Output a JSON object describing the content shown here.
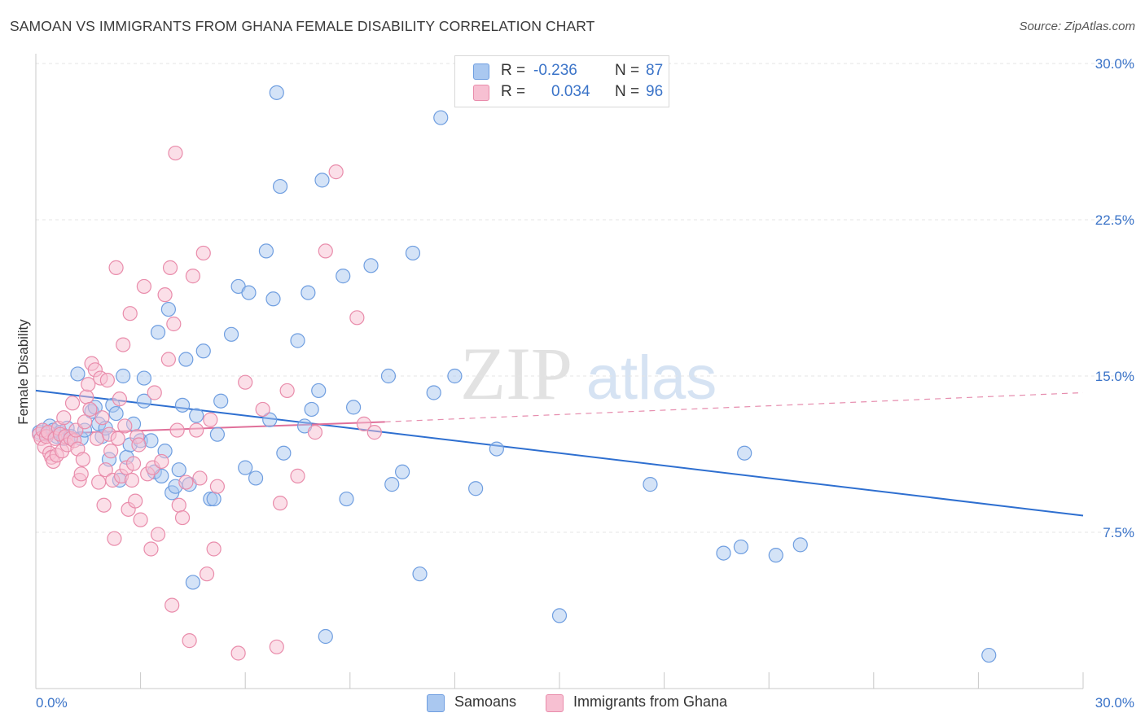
{
  "title": "SAMOAN VS IMMIGRANTS FROM GHANA FEMALE DISABILITY CORRELATION CHART",
  "source": "Source: ZipAtlas.com",
  "watermark": {
    "zip": "ZIP",
    "atlas": "atlas"
  },
  "legend": {
    "rows": [
      {
        "r_label": "R =",
        "r_value": "-0.236",
        "n_label": "N =",
        "n_value": "87",
        "color": "#aac8f0",
        "border": "#6f9ee0"
      },
      {
        "r_label": "R =",
        "r_value": "0.034",
        "n_label": "N =",
        "n_value": "96",
        "color": "#f7c0d2",
        "border": "#e98cab"
      }
    ]
  },
  "bottom_legend": [
    {
      "label": "Samoans",
      "color": "#aac8f0",
      "border": "#6f9ee0"
    },
    {
      "label": "Immigrants from Ghana",
      "color": "#f7c0d2",
      "border": "#e98cab"
    }
  ],
  "chart_data": {
    "type": "scatter",
    "ylabel": "Female Disability",
    "xlim": [
      0,
      30
    ],
    "ylim": [
      0,
      30.0
    ],
    "x_tick_labels": [
      {
        "value": 0,
        "label": "0.0%"
      },
      {
        "value": 30,
        "label": "30.0%"
      }
    ],
    "y_tick_labels": [
      {
        "value": 7.5,
        "label": "7.5%"
      },
      {
        "value": 15.0,
        "label": "15.0%"
      },
      {
        "value": 22.5,
        "label": "22.5%"
      },
      {
        "value": 30.0,
        "label": "30.0%"
      }
    ],
    "x_minor_ticks": [
      3,
      6,
      9,
      12,
      15,
      18,
      21,
      24,
      27,
      30
    ],
    "grid": true,
    "colors": {
      "samoans_line": "#2e6fd0",
      "ghana_line": "#e0709a",
      "y_tick_text": "#3a73c8",
      "x_tick_text": "#3a73c8"
    },
    "series": [
      {
        "name": "Samoans",
        "fill": "#aac8f0",
        "stroke": "#6f9ee0",
        "trend": {
          "x": [
            0,
            30
          ],
          "y": [
            14.3,
            8.3
          ],
          "style": "solid"
        },
        "points": [
          [
            0.1,
            12.3
          ],
          [
            0.2,
            12.4
          ],
          [
            0.3,
            12.2
          ],
          [
            0.4,
            12.6
          ],
          [
            0.5,
            12.4
          ],
          [
            0.6,
            12.1
          ],
          [
            0.7,
            12.3
          ],
          [
            0.8,
            12.0
          ],
          [
            0.9,
            12.5
          ],
          [
            1.0,
            12.1
          ],
          [
            1.2,
            15.1
          ],
          [
            1.3,
            12.0
          ],
          [
            1.4,
            12.4
          ],
          [
            1.6,
            13.3
          ],
          [
            1.7,
            13.5
          ],
          [
            1.8,
            12.7
          ],
          [
            1.9,
            12.1
          ],
          [
            2.0,
            12.5
          ],
          [
            2.1,
            11.0
          ],
          [
            2.2,
            13.6
          ],
          [
            2.3,
            13.2
          ],
          [
            2.4,
            10.0
          ],
          [
            2.5,
            15.0
          ],
          [
            2.6,
            11.1
          ],
          [
            2.7,
            11.7
          ],
          [
            2.8,
            12.7
          ],
          [
            3.0,
            11.9
          ],
          [
            3.1,
            13.8
          ],
          [
            3.1,
            14.9
          ],
          [
            3.3,
            11.9
          ],
          [
            3.4,
            10.4
          ],
          [
            3.5,
            17.1
          ],
          [
            3.6,
            10.2
          ],
          [
            3.7,
            11.4
          ],
          [
            3.8,
            18.2
          ],
          [
            3.9,
            9.4
          ],
          [
            4.0,
            9.7
          ],
          [
            4.1,
            10.5
          ],
          [
            4.2,
            13.6
          ],
          [
            4.3,
            15.8
          ],
          [
            4.4,
            9.8
          ],
          [
            4.5,
            5.1
          ],
          [
            4.6,
            13.1
          ],
          [
            4.8,
            16.2
          ],
          [
            5.0,
            9.1
          ],
          [
            5.1,
            9.1
          ],
          [
            5.2,
            12.2
          ],
          [
            5.3,
            13.8
          ],
          [
            5.6,
            17.0
          ],
          [
            5.8,
            19.3
          ],
          [
            6.0,
            10.6
          ],
          [
            6.1,
            19.0
          ],
          [
            6.3,
            10.1
          ],
          [
            6.6,
            21.0
          ],
          [
            6.7,
            12.9
          ],
          [
            6.8,
            18.7
          ],
          [
            6.9,
            28.6
          ],
          [
            7.0,
            24.1
          ],
          [
            7.1,
            11.3
          ],
          [
            7.5,
            16.7
          ],
          [
            7.7,
            12.6
          ],
          [
            7.8,
            19.0
          ],
          [
            7.9,
            13.4
          ],
          [
            8.1,
            14.3
          ],
          [
            8.2,
            24.4
          ],
          [
            8.3,
            2.5
          ],
          [
            8.8,
            19.8
          ],
          [
            8.9,
            9.1
          ],
          [
            9.1,
            13.5
          ],
          [
            9.6,
            20.3
          ],
          [
            10.1,
            15.0
          ],
          [
            10.2,
            9.8
          ],
          [
            10.5,
            10.4
          ],
          [
            10.8,
            20.9
          ],
          [
            11.0,
            5.5
          ],
          [
            11.4,
            14.2
          ],
          [
            11.6,
            27.4
          ],
          [
            12.0,
            15.0
          ],
          [
            12.6,
            9.6
          ],
          [
            13.2,
            11.5
          ],
          [
            15.0,
            3.5
          ],
          [
            17.6,
            9.8
          ],
          [
            19.7,
            6.5
          ],
          [
            20.2,
            6.8
          ],
          [
            20.3,
            11.3
          ],
          [
            21.2,
            6.4
          ],
          [
            21.9,
            6.9
          ],
          [
            27.3,
            1.6
          ]
        ]
      },
      {
        "name": "Immigrants from Ghana",
        "fill": "#f7c0d2",
        "stroke": "#e98cab",
        "trend": {
          "x": [
            0,
            10.0
          ],
          "y": [
            12.2,
            12.8
          ],
          "style": "solid",
          "extended": {
            "x": [
              10.0,
              30
            ],
            "y": [
              12.8,
              14.2
            ],
            "style": "dashed"
          }
        },
        "points": [
          [
            0.1,
            12.2
          ],
          [
            0.15,
            12.0
          ],
          [
            0.2,
            12.4
          ],
          [
            0.25,
            11.6
          ],
          [
            0.3,
            12.1
          ],
          [
            0.35,
            12.3
          ],
          [
            0.4,
            11.3
          ],
          [
            0.45,
            11.1
          ],
          [
            0.5,
            10.9
          ],
          [
            0.55,
            12.0
          ],
          [
            0.6,
            11.2
          ],
          [
            0.65,
            12.5
          ],
          [
            0.7,
            12.2
          ],
          [
            0.75,
            11.4
          ],
          [
            0.8,
            13.0
          ],
          [
            0.85,
            12.1
          ],
          [
            0.9,
            11.7
          ],
          [
            1.0,
            12.0
          ],
          [
            1.05,
            13.7
          ],
          [
            1.1,
            11.9
          ],
          [
            1.15,
            12.4
          ],
          [
            1.2,
            11.5
          ],
          [
            1.25,
            10.0
          ],
          [
            1.3,
            10.3
          ],
          [
            1.35,
            11.0
          ],
          [
            1.4,
            12.8
          ],
          [
            1.45,
            14.0
          ],
          [
            1.5,
            14.6
          ],
          [
            1.55,
            13.4
          ],
          [
            1.6,
            15.6
          ],
          [
            1.7,
            15.3
          ],
          [
            1.75,
            12.0
          ],
          [
            1.8,
            9.9
          ],
          [
            1.85,
            14.9
          ],
          [
            1.9,
            13.0
          ],
          [
            1.95,
            8.8
          ],
          [
            2.0,
            10.5
          ],
          [
            2.05,
            14.8
          ],
          [
            2.1,
            12.2
          ],
          [
            2.15,
            11.4
          ],
          [
            2.2,
            10.0
          ],
          [
            2.25,
            7.2
          ],
          [
            2.3,
            20.2
          ],
          [
            2.35,
            12.0
          ],
          [
            2.4,
            13.9
          ],
          [
            2.45,
            10.2
          ],
          [
            2.5,
            16.5
          ],
          [
            2.55,
            12.6
          ],
          [
            2.6,
            10.6
          ],
          [
            2.65,
            8.6
          ],
          [
            2.7,
            18.0
          ],
          [
            2.75,
            10.0
          ],
          [
            2.8,
            10.8
          ],
          [
            2.85,
            9.0
          ],
          [
            2.9,
            12.1
          ],
          [
            2.95,
            11.7
          ],
          [
            3.0,
            8.1
          ],
          [
            3.1,
            19.3
          ],
          [
            3.2,
            10.3
          ],
          [
            3.3,
            6.7
          ],
          [
            3.35,
            10.6
          ],
          [
            3.4,
            14.2
          ],
          [
            3.5,
            7.4
          ],
          [
            3.6,
            10.9
          ],
          [
            3.7,
            18.9
          ],
          [
            3.8,
            15.8
          ],
          [
            3.85,
            20.2
          ],
          [
            3.9,
            4.0
          ],
          [
            3.95,
            17.5
          ],
          [
            4.0,
            25.7
          ],
          [
            4.05,
            12.4
          ],
          [
            4.1,
            8.8
          ],
          [
            4.2,
            8.2
          ],
          [
            4.3,
            9.9
          ],
          [
            4.4,
            2.3
          ],
          [
            4.5,
            19.8
          ],
          [
            4.6,
            12.4
          ],
          [
            4.7,
            10.1
          ],
          [
            4.8,
            20.9
          ],
          [
            4.9,
            5.5
          ],
          [
            5.0,
            12.9
          ],
          [
            5.1,
            6.7
          ],
          [
            5.2,
            9.7
          ],
          [
            5.8,
            1.7
          ],
          [
            6.0,
            14.7
          ],
          [
            6.5,
            13.4
          ],
          [
            6.9,
            2.0
          ],
          [
            7.0,
            8.9
          ],
          [
            7.2,
            14.3
          ],
          [
            7.5,
            10.2
          ],
          [
            8.0,
            12.3
          ],
          [
            8.3,
            21.0
          ],
          [
            8.6,
            24.8
          ],
          [
            9.2,
            17.8
          ],
          [
            9.4,
            12.7
          ],
          [
            9.7,
            12.3
          ]
        ]
      }
    ]
  }
}
